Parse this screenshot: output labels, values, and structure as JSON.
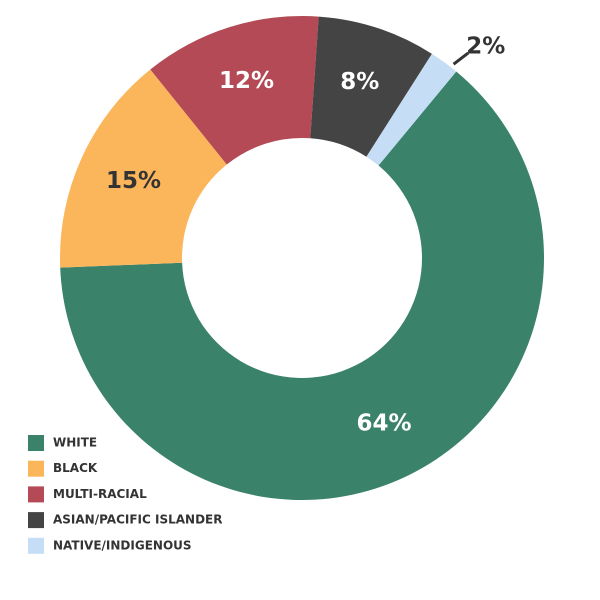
{
  "chart_data": {
    "type": "donut",
    "categories": [
      "WHITE",
      "BLACK",
      "MULTI-RACIAL",
      "ASIAN/PACIFIC ISLANDER",
      "NATIVE/INDIGENOUS"
    ],
    "values": [
      64,
      15,
      12,
      8,
      2
    ],
    "value_labels": [
      "64%",
      "15%",
      "12%",
      "8%",
      "2%"
    ],
    "colors": [
      "#3a826a",
      "#fbb65c",
      "#b34a55",
      "#444444",
      "#c5ddf5"
    ],
    "label_colors": [
      "#ffffff",
      "#333333",
      "#ffffff",
      "#ffffff",
      "#333333"
    ],
    "legend": "bottom-left"
  }
}
